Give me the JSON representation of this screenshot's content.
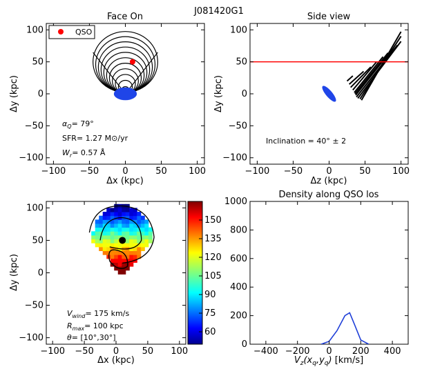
{
  "figure_title": "J081420G1",
  "chart_data": [
    {
      "type": "scatter",
      "title": "Face On",
      "xlabel": "Δx (kpc)",
      "ylabel": "Δy (kpc)",
      "xlim": [
        -110,
        110
      ],
      "ylim": [
        -110,
        110
      ],
      "xticks": [
        -100,
        -50,
        0,
        50,
        100
      ],
      "yticks": [
        -100,
        -50,
        0,
        50,
        100
      ],
      "legend": {
        "label": "QSO",
        "position": "top-left"
      },
      "qso": {
        "x": 10,
        "y": 50
      },
      "galaxy": {
        "x": 0,
        "y": 0,
        "rx": 16,
        "ry": 10
      },
      "cone": {
        "apex": [
          0,
          0
        ],
        "half_width": 45,
        "height": 95,
        "ellipses": 11
      },
      "annotations": [
        {
          "id": "alpha",
          "sym": "α",
          "sub": "Q",
          "text": "=  79°"
        },
        {
          "id": "sfr",
          "text": "SFR= 1.27 M⊙/yr"
        },
        {
          "id": "wr",
          "sym": "W",
          "sub": "r",
          "text": "= 0.57 Å"
        }
      ]
    },
    {
      "type": "line",
      "title": "Side view",
      "xlabel": "Δz (kpc)",
      "ylabel": "Δy (kpc)",
      "xlim": [
        -110,
        110
      ],
      "ylim": [
        -110,
        110
      ],
      "xticks": [
        -100,
        -50,
        0,
        50,
        100
      ],
      "yticks": [
        -100,
        -50,
        0,
        50,
        100
      ],
      "sightline_y": 50,
      "sightline_color": "#ff0000",
      "galaxy": {
        "x": 0,
        "y": 0,
        "rx": 14,
        "ry": 5,
        "angle": 50
      },
      "cone_segments": [
        [
          [
            25,
            20
          ],
          [
            33,
            28
          ]
        ],
        [
          [
            28,
            15
          ],
          [
            48,
            35
          ]
        ],
        [
          [
            30,
            10
          ],
          [
            58,
            42
          ]
        ],
        [
          [
            33,
            6
          ],
          [
            66,
            50
          ]
        ],
        [
          [
            35,
            2
          ],
          [
            75,
            58
          ]
        ],
        [
          [
            36,
            0
          ],
          [
            82,
            64
          ]
        ],
        [
          [
            37,
            -2
          ],
          [
            88,
            70
          ]
        ],
        [
          [
            38,
            -5
          ],
          [
            95,
            76
          ]
        ],
        [
          [
            40,
            -7
          ],
          [
            100,
            82
          ]
        ],
        [
          [
            43,
            -8
          ],
          [
            100,
            90
          ]
        ],
        [
          [
            45,
            -10
          ],
          [
            100,
            97
          ]
        ]
      ],
      "annotations": [
        {
          "id": "incl",
          "text": "Inclination =  40°  ±  2"
        }
      ]
    },
    {
      "type": "heatmap",
      "title": "",
      "xlabel": "Δx (kpc)",
      "ylabel": "Δy (kpc)",
      "xlim": [
        -110,
        110
      ],
      "ylim": [
        -110,
        110
      ],
      "xticks": [
        -100,
        -50,
        0,
        50,
        100
      ],
      "yticks": [
        -100,
        -50,
        0,
        50,
        100
      ],
      "colorbar": {
        "min": 50,
        "max": 165,
        "ticks": [
          60,
          75,
          90,
          105,
          120,
          135,
          150
        ]
      },
      "qso": {
        "x": 10,
        "y": 50
      },
      "annotations": [
        {
          "id": "vwind",
          "sym": "V",
          "sub": "wind",
          "text": "= 175 km/s"
        },
        {
          "id": "rmax",
          "sym": "R",
          "sub": "max",
          "text": "= 100 kpc"
        },
        {
          "id": "theta",
          "sym": "θ",
          "sub": "",
          "text": "= [10°,30°]"
        }
      ]
    },
    {
      "type": "line",
      "title": "Density along QSO los",
      "xlabel": "Vz(xq,yq) [km/s]",
      "ylabel": "",
      "xlim": [
        -500,
        500
      ],
      "ylim": [
        0,
        1000
      ],
      "xticks": [
        -400,
        -200,
        0,
        200,
        400
      ],
      "yticks": [
        0,
        200,
        400,
        600,
        800,
        1000
      ],
      "series": [
        {
          "name": "density",
          "color": "#1f3fd8",
          "x": [
            -50,
            0,
            50,
            100,
            130,
            160,
            200,
            250
          ],
          "y": [
            0,
            20,
            95,
            200,
            220,
            140,
            30,
            0
          ]
        }
      ]
    }
  ]
}
